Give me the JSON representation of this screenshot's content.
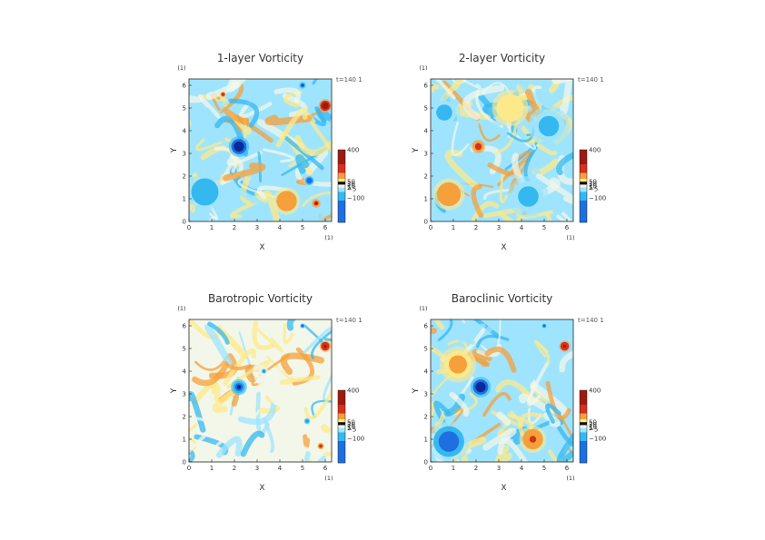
{
  "figure": {
    "colors": {
      "deep_blue": "#0a2a9c",
      "blue": "#1e6fe0",
      "cyan": "#35b8f0",
      "light_cyan": "#9fe4ff",
      "pale": "#f2f7ea",
      "yellow": "#fde98a",
      "orange": "#f5a03a",
      "red": "#d7301f",
      "dark_red": "#9e1a10",
      "black": "#111111"
    }
  },
  "chart_data": [
    {
      "type": "heatmap",
      "title": "1-layer Vorticity",
      "xlabel": "X",
      "ylabel": "Y",
      "x_unit": "(1)",
      "y_unit": "(1)",
      "xlim": [
        0,
        6.28
      ],
      "ylim": [
        0,
        6.28
      ],
      "xticks": [
        "0",
        "1",
        "2",
        "3",
        "4",
        "5",
        "6"
      ],
      "yticks": [
        "0",
        "1",
        "2",
        "3",
        "4",
        "5",
        "6"
      ],
      "time_label": "t=140 1",
      "colorbar_ticks": [
        "400",
        "50",
        "30",
        "10",
        "5",
        "−5",
        "−100"
      ],
      "colorbar_range": [
        -150,
        400
      ],
      "features": [
        {
          "x": 2.2,
          "y": 3.3,
          "value": -150,
          "r": 0.45
        },
        {
          "x": 6.0,
          "y": 5.1,
          "value": 380,
          "r": 0.3
        },
        {
          "x": 5.0,
          "y": 6.0,
          "value": -120,
          "r": 0.15
        },
        {
          "x": 5.3,
          "y": 1.8,
          "value": -100,
          "r": 0.25
        },
        {
          "x": 5.6,
          "y": 0.8,
          "value": 300,
          "r": 0.2
        },
        {
          "x": 0.7,
          "y": 1.3,
          "value": -60,
          "r": 0.8
        },
        {
          "x": 4.3,
          "y": 0.9,
          "value": 150,
          "r": 0.6
        },
        {
          "x": 1.5,
          "y": 5.6,
          "value": 200,
          "r": 0.15
        }
      ]
    },
    {
      "type": "heatmap",
      "title": "2-layer Vorticity",
      "xlabel": "X",
      "ylabel": "Y",
      "x_unit": "(1)",
      "y_unit": "(1)",
      "xlim": [
        0,
        6.28
      ],
      "ylim": [
        0,
        6.28
      ],
      "xticks": [
        "0",
        "1",
        "2",
        "3",
        "4",
        "5",
        "6"
      ],
      "yticks": [
        "0",
        "1",
        "2",
        "3",
        "4",
        "5",
        "6"
      ],
      "time_label": "t=140 1",
      "colorbar_ticks": [
        "400",
        "50",
        "30",
        "10",
        "5",
        "−5",
        "−100"
      ],
      "colorbar_range": [
        -150,
        400
      ],
      "features": [
        {
          "x": 2.1,
          "y": 3.3,
          "value": 250,
          "r": 0.3
        },
        {
          "x": 0.8,
          "y": 1.2,
          "value": 120,
          "r": 0.7
        },
        {
          "x": 4.3,
          "y": 1.1,
          "value": -50,
          "r": 0.9
        },
        {
          "x": 5.2,
          "y": 4.2,
          "value": -40,
          "r": 0.9
        },
        {
          "x": 0.6,
          "y": 4.8,
          "value": -40,
          "r": 0.7
        },
        {
          "x": 3.5,
          "y": 5.0,
          "value": 40,
          "r": 0.8
        }
      ]
    },
    {
      "type": "heatmap",
      "title": "Barotropic Vorticity",
      "xlabel": "X",
      "ylabel": "Y",
      "x_unit": "(1)",
      "y_unit": "(1)",
      "xlim": [
        0,
        6.28
      ],
      "ylim": [
        0,
        6.28
      ],
      "xticks": [
        "0",
        "1",
        "2",
        "3",
        "4",
        "5",
        "6"
      ],
      "yticks": [
        "0",
        "1",
        "2",
        "3",
        "4",
        "5",
        "6"
      ],
      "time_label": "t=140 1",
      "colorbar_ticks": [
        "400",
        "50",
        "30",
        "10",
        "5",
        "−5",
        "−100"
      ],
      "colorbar_range": [
        -150,
        400
      ],
      "features": [
        {
          "x": 2.2,
          "y": 3.3,
          "value": -130,
          "r": 0.35
        },
        {
          "x": 6.0,
          "y": 5.1,
          "value": 320,
          "r": 0.25
        },
        {
          "x": 5.0,
          "y": 6.0,
          "value": -100,
          "r": 0.12
        },
        {
          "x": 5.2,
          "y": 1.8,
          "value": -80,
          "r": 0.15
        },
        {
          "x": 5.8,
          "y": 0.7,
          "value": 250,
          "r": 0.15
        },
        {
          "x": 3.3,
          "y": 4.0,
          "value": -70,
          "r": 0.12
        }
      ]
    },
    {
      "type": "heatmap",
      "title": "Baroclinic Vorticity",
      "xlabel": "X",
      "ylabel": "Y",
      "x_unit": "(1)",
      "y_unit": "(1)",
      "xlim": [
        0,
        6.28
      ],
      "ylim": [
        0,
        6.28
      ],
      "xticks": [
        "0",
        "1",
        "2",
        "3",
        "4",
        "5",
        "6"
      ],
      "yticks": [
        "0",
        "1",
        "2",
        "3",
        "4",
        "5",
        "6"
      ],
      "time_label": "t=140 1",
      "colorbar_ticks": [
        "400",
        "50",
        "30",
        "10",
        "5",
        "−5",
        "−100"
      ],
      "colorbar_range": [
        -150,
        400
      ],
      "features": [
        {
          "x": 2.2,
          "y": 3.3,
          "value": -150,
          "r": 0.45
        },
        {
          "x": 5.9,
          "y": 5.1,
          "value": 350,
          "r": 0.25
        },
        {
          "x": 0.8,
          "y": 0.9,
          "value": -90,
          "r": 0.9
        },
        {
          "x": 4.5,
          "y": 1.0,
          "value": 180,
          "r": 0.6
        },
        {
          "x": 1.2,
          "y": 4.3,
          "value": 80,
          "r": 0.8
        },
        {
          "x": 5.0,
          "y": 6.0,
          "value": -110,
          "r": 0.12
        }
      ]
    }
  ]
}
